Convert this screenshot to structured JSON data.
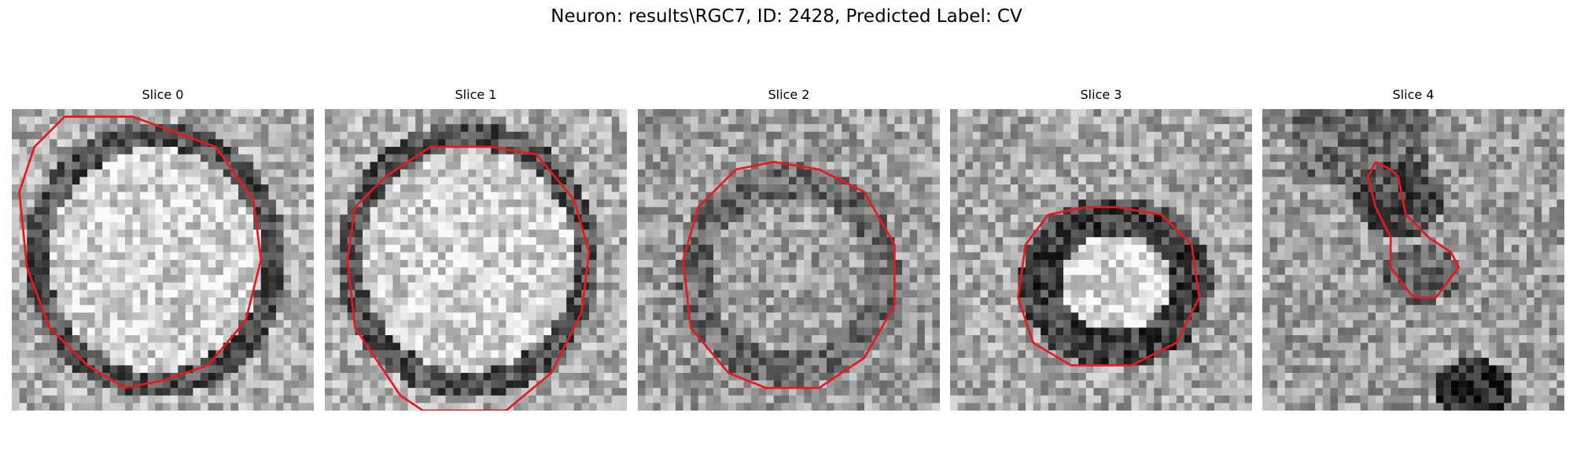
{
  "figure": {
    "title": "Neuron: results\\RGC7, ID: 2428, Predicted Label: CV"
  },
  "colors": {
    "contour": "#e8191c"
  },
  "panels": [
    {
      "label": "Slice 0",
      "seed": 11,
      "pattern": "ring",
      "contour": [
        [
          7,
          1
        ],
        [
          3,
          5
        ],
        [
          1,
          11
        ],
        [
          2,
          21
        ],
        [
          5,
          29
        ],
        [
          10,
          34
        ],
        [
          15,
          37
        ],
        [
          20,
          36
        ],
        [
          26,
          34
        ],
        [
          31,
          28
        ],
        [
          33,
          20
        ],
        [
          32,
          12
        ],
        [
          27,
          5
        ],
        [
          16,
          1
        ]
      ]
    },
    {
      "label": "Slice 1",
      "seed": 23,
      "pattern": "ring",
      "contour": [
        [
          14,
          5
        ],
        [
          8,
          9
        ],
        [
          4,
          13
        ],
        [
          3,
          20
        ],
        [
          4,
          29
        ],
        [
          10,
          38
        ],
        [
          13,
          40
        ],
        [
          18,
          40
        ],
        [
          24,
          40
        ],
        [
          30,
          35
        ],
        [
          34,
          27
        ],
        [
          35,
          19
        ],
        [
          33,
          12
        ],
        [
          28,
          6
        ],
        [
          22,
          5
        ]
      ]
    },
    {
      "label": "Slice 2",
      "seed": 37,
      "pattern": "ring-faint",
      "contour": [
        [
          13,
          8
        ],
        [
          8,
          13
        ],
        [
          6,
          20
        ],
        [
          7,
          29
        ],
        [
          12,
          35
        ],
        [
          17,
          37
        ],
        [
          24,
          37
        ],
        [
          30,
          33
        ],
        [
          34,
          26
        ],
        [
          34,
          18
        ],
        [
          30,
          11
        ],
        [
          24,
          8
        ],
        [
          18,
          7
        ]
      ]
    },
    {
      "label": "Slice 3",
      "seed": 41,
      "pattern": "ring-dark",
      "contour": [
        [
          13,
          14
        ],
        [
          10,
          18
        ],
        [
          9,
          25
        ],
        [
          11,
          31
        ],
        [
          16,
          34
        ],
        [
          24,
          34
        ],
        [
          30,
          31
        ],
        [
          33,
          25
        ],
        [
          32,
          18
        ],
        [
          28,
          14
        ],
        [
          22,
          13
        ],
        [
          18,
          13
        ]
      ]
    },
    {
      "label": "Slice 4",
      "seed": 53,
      "pattern": "blob",
      "contour": [
        [
          15,
          7
        ],
        [
          14,
          9
        ],
        [
          15,
          13
        ],
        [
          17,
          17
        ],
        [
          17,
          21
        ],
        [
          20,
          25
        ],
        [
          23,
          25
        ],
        [
          26,
          21
        ],
        [
          25,
          19
        ],
        [
          22,
          17
        ],
        [
          19,
          14
        ],
        [
          18,
          9
        ],
        [
          17,
          8
        ]
      ]
    }
  ]
}
